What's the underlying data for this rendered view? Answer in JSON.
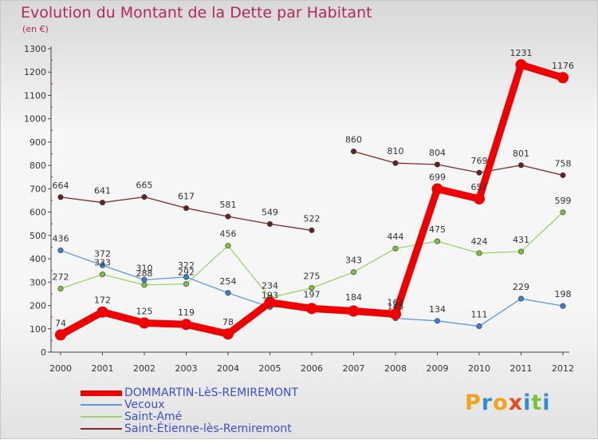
{
  "title": "Evolution du Montant de la Dette par Habitant",
  "unit_label": "(en €)",
  "brand": {
    "letters": [
      "P",
      "r",
      "o",
      "x",
      "i",
      "t",
      "i"
    ],
    "colors": [
      "#f2a21b",
      "#2f8fd5",
      "#f2a21b",
      "#e44a1e",
      "#2f8fd5",
      "#7cc13a",
      "#2f8fd5"
    ]
  },
  "chart_data": {
    "type": "line",
    "title": "Evolution du Montant de la Dette par Habitant",
    "ylabel": "(en €)",
    "x": [
      "2000",
      "2001",
      "2002",
      "2003",
      "2004",
      "2005",
      "2006",
      "2007",
      "2008",
      "2009",
      "2010",
      "2011",
      "2012"
    ],
    "ylim": [
      0,
      1300
    ],
    "yticks": [
      0,
      100,
      200,
      300,
      400,
      500,
      600,
      700,
      800,
      900,
      1000,
      1100,
      1200,
      1300
    ],
    "grid": false,
    "legend_position": "bottom-left",
    "series": [
      {
        "name": "DOMMARTIN-LèS-REMIREMONT",
        "color": "#ee0000",
        "marker": "#ee0000",
        "values": [
          74,
          172,
          125,
          119,
          78,
          213,
          187,
          176,
          163,
          699,
          657,
          1231,
          1176
        ],
        "labels": [
          "74",
          "172",
          "125",
          "119",
          "78",
          "",
          "",
          "",
          "163",
          "699",
          "657",
          "1231",
          "1176"
        ]
      },
      {
        "name": "Vecoux",
        "color": "#5b9bd5",
        "marker": "#3a7fcf",
        "values": [
          436,
          372,
          310,
          322,
          254,
          193,
          197,
          184,
          145,
          134,
          111,
          229,
          198
        ],
        "labels": [
          "436",
          "372",
          "310",
          "322",
          "254",
          "193",
          "197",
          "184",
          "145",
          "134",
          "111",
          "229",
          "198"
        ]
      },
      {
        "name": "Saint-Amé",
        "color": "#9ad46a",
        "marker": "#7cc13a",
        "values": [
          272,
          333,
          288,
          292,
          456,
          234,
          275,
          343,
          444,
          475,
          424,
          431,
          599
        ],
        "labels": [
          "272",
          "333",
          "288",
          "292",
          "456",
          "234",
          "275",
          "343",
          "444",
          "475",
          "424",
          "431",
          "599"
        ]
      },
      {
        "name": "Saint-Étienne-lès-Remiremont",
        "color": "#7a2a2a",
        "marker": "#6a1f1f",
        "segments_break_after": 6,
        "values": [
          664,
          641,
          665,
          617,
          581,
          549,
          522,
          860,
          810,
          804,
          769,
          801,
          758
        ],
        "labels": [
          "664",
          "641",
          "665",
          "617",
          "581",
          "549",
          "522",
          "860",
          "810",
          "804",
          "769",
          "801",
          "758"
        ]
      }
    ]
  }
}
